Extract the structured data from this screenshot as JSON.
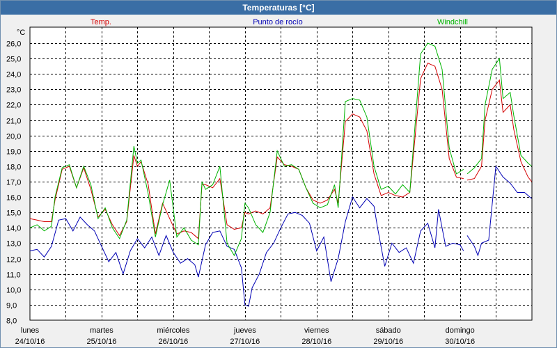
{
  "window": {
    "title": "Temperaturas [°C]"
  },
  "chart_data": {
    "type": "line",
    "title": "Temperaturas [°C]",
    "ylabel": "°C",
    "ylim": [
      8,
      26.7
    ],
    "yticks": [
      "26,0",
      "25,0",
      "24,0",
      "23,0",
      "22,0",
      "21,0",
      "20,0",
      "19,0",
      "18,0",
      "17,0",
      "16,0",
      "15,0",
      "14,0",
      "13,0",
      "12,0",
      "11,0",
      "10,0",
      "9,0",
      "8,0"
    ],
    "grid": true,
    "legend_position": "top",
    "x_day_labels": [
      {
        "day": "lunes",
        "date": "24/10/16"
      },
      {
        "day": "martes",
        "date": "25/10/16"
      },
      {
        "day": "miércoles",
        "date": "26/10/16"
      },
      {
        "day": "jueves",
        "date": "27/10/16"
      },
      {
        "day": "viernes",
        "date": "28/10/16"
      },
      {
        "day": "sábado",
        "date": "29/10/16"
      },
      {
        "day": "domingo",
        "date": "30/10/16"
      }
    ],
    "xlim": [
      0,
      7
    ],
    "series": [
      {
        "name": "Temp.",
        "color": "#d40000",
        "points": [
          [
            0,
            14.6
          ],
          [
            0.1,
            14.5
          ],
          [
            0.2,
            14.4
          ],
          [
            0.3,
            14.4
          ],
          [
            0.35,
            15.8
          ],
          [
            0.45,
            17.8
          ],
          [
            0.55,
            18
          ],
          [
            0.65,
            16.6
          ],
          [
            0.75,
            17.9
          ],
          [
            0.85,
            16.5
          ],
          [
            0.95,
            14.7
          ],
          [
            1.05,
            15.2
          ],
          [
            1.15,
            14.2
          ],
          [
            1.25,
            13.5
          ],
          [
            1.35,
            14.4
          ],
          [
            1.45,
            18.7
          ],
          [
            1.5,
            18
          ],
          [
            1.55,
            18.3
          ],
          [
            1.65,
            16.8
          ],
          [
            1.75,
            13.6
          ],
          [
            1.85,
            15.6
          ],
          [
            1.95,
            14.6
          ],
          [
            2.05,
            13.6
          ],
          [
            2.15,
            13.8
          ],
          [
            2.25,
            13.7
          ],
          [
            2.35,
            13.3
          ],
          [
            2.4,
            16.8
          ],
          [
            2.45,
            16.8
          ],
          [
            2.55,
            16.6
          ],
          [
            2.65,
            17.2
          ],
          [
            2.75,
            14.2
          ],
          [
            2.85,
            13.9
          ],
          [
            2.95,
            14.0
          ],
          [
            3.0,
            15.0
          ],
          [
            3.05,
            14.9
          ],
          [
            3.15,
            15.1
          ],
          [
            3.25,
            14.9
          ],
          [
            3.35,
            15.3
          ],
          [
            3.45,
            18.6
          ],
          [
            3.55,
            18.1
          ],
          [
            3.65,
            18.0
          ],
          [
            3.75,
            17.8
          ],
          [
            3.85,
            16.6
          ],
          [
            3.95,
            15.8
          ],
          [
            4.05,
            15.6
          ],
          [
            4.15,
            15.8
          ],
          [
            4.25,
            16.5
          ],
          [
            4.3,
            15.6
          ],
          [
            4.4,
            20.9
          ],
          [
            4.5,
            21.4
          ],
          [
            4.6,
            21.2
          ],
          [
            4.7,
            20.3
          ],
          [
            4.8,
            17.5
          ],
          [
            4.9,
            16.1
          ],
          [
            5.0,
            16.3
          ],
          [
            5.1,
            16.1
          ],
          [
            5.2,
            16.0
          ],
          [
            5.3,
            16.3
          ],
          [
            5.45,
            23.7
          ],
          [
            5.55,
            24.7
          ],
          [
            5.65,
            24.5
          ],
          [
            5.75,
            23.0
          ],
          [
            5.85,
            18.5
          ],
          [
            5.95,
            17.3
          ],
          [
            6.05,
            17.2
          ],
          [
            null,
            null
          ],
          [
            6.1,
            17.1
          ],
          [
            6.2,
            17.2
          ],
          [
            6.3,
            18.0
          ],
          [
            6.35,
            21.0
          ],
          [
            6.45,
            23.0
          ],
          [
            6.55,
            23.6
          ],
          [
            6.6,
            21.5
          ],
          [
            6.7,
            22.0
          ],
          [
            6.75,
            20.4
          ],
          [
            6.85,
            18.3
          ],
          [
            6.95,
            17.3
          ],
          [
            7.0,
            17.0
          ]
        ]
      },
      {
        "name": "Punto de rocío",
        "color": "#0000b4",
        "points": [
          [
            0,
            12.5
          ],
          [
            0.1,
            12.6
          ],
          [
            0.2,
            12.1
          ],
          [
            0.3,
            12.8
          ],
          [
            0.4,
            14.5
          ],
          [
            0.5,
            14.6
          ],
          [
            0.6,
            13.8
          ],
          [
            0.7,
            14.7
          ],
          [
            0.8,
            14.2
          ],
          [
            0.9,
            13.8
          ],
          [
            1.0,
            12.8
          ],
          [
            1.1,
            11.8
          ],
          [
            1.2,
            12.4
          ],
          [
            1.3,
            11.0
          ],
          [
            1.4,
            12.5
          ],
          [
            1.5,
            13.3
          ],
          [
            1.6,
            12.7
          ],
          [
            1.7,
            13.4
          ],
          [
            1.8,
            12.2
          ],
          [
            1.9,
            13.5
          ],
          [
            2.0,
            12.4
          ],
          [
            2.1,
            11.7
          ],
          [
            2.2,
            12.0
          ],
          [
            2.3,
            11.6
          ],
          [
            2.35,
            10.8
          ],
          [
            2.45,
            12.9
          ],
          [
            2.55,
            13.7
          ],
          [
            2.65,
            13.8
          ],
          [
            2.75,
            12.8
          ],
          [
            2.85,
            12.6
          ],
          [
            2.95,
            11.4
          ],
          [
            3.0,
            9.0
          ],
          [
            3.05,
            8.9
          ],
          [
            3.1,
            10.1
          ],
          [
            3.2,
            11.0
          ],
          [
            3.3,
            12.4
          ],
          [
            3.4,
            13.0
          ],
          [
            3.5,
            14.0
          ],
          [
            3.6,
            14.9
          ],
          [
            3.7,
            15.0
          ],
          [
            3.8,
            14.8
          ],
          [
            3.9,
            14.3
          ],
          [
            4.0,
            12.5
          ],
          [
            4.1,
            13.4
          ],
          [
            4.2,
            10.5
          ],
          [
            4.3,
            12.0
          ],
          [
            4.4,
            14.4
          ],
          [
            4.5,
            16.0
          ],
          [
            4.6,
            15.3
          ],
          [
            4.7,
            15.9
          ],
          [
            4.8,
            15.4
          ],
          [
            4.85,
            14.0
          ],
          [
            4.95,
            11.5
          ],
          [
            5.05,
            13.0
          ],
          [
            5.15,
            12.4
          ],
          [
            5.25,
            12.7
          ],
          [
            5.35,
            11.7
          ],
          [
            5.45,
            13.8
          ],
          [
            5.55,
            14.3
          ],
          [
            5.65,
            12.7
          ],
          [
            5.7,
            15.2
          ],
          [
            5.8,
            12.8
          ],
          [
            5.9,
            13.0
          ],
          [
            6.0,
            12.9
          ],
          [
            6.05,
            12.5
          ],
          [
            null,
            null
          ],
          [
            6.1,
            13.5
          ],
          [
            6.2,
            12.8
          ],
          [
            6.25,
            12.2
          ],
          [
            6.3,
            13.0
          ],
          [
            6.4,
            13.2
          ],
          [
            6.5,
            18.0
          ],
          [
            6.6,
            17.3
          ],
          [
            6.7,
            16.9
          ],
          [
            6.8,
            16.3
          ],
          [
            6.9,
            16.3
          ],
          [
            7.0,
            15.9
          ]
        ]
      },
      {
        "name": "Windchill",
        "color": "#00b400",
        "points": [
          [
            0,
            14.0
          ],
          [
            0.1,
            14.2
          ],
          [
            0.2,
            13.8
          ],
          [
            0.3,
            14.1
          ],
          [
            0.35,
            16.0
          ],
          [
            0.45,
            17.9
          ],
          [
            0.55,
            18.1
          ],
          [
            0.65,
            16.6
          ],
          [
            0.75,
            18.0
          ],
          [
            0.85,
            16.8
          ],
          [
            0.95,
            14.6
          ],
          [
            1.05,
            15.3
          ],
          [
            1.15,
            14.0
          ],
          [
            1.25,
            13.3
          ],
          [
            1.35,
            14.5
          ],
          [
            1.45,
            19.3
          ],
          [
            1.5,
            18.2
          ],
          [
            1.55,
            18.4
          ],
          [
            1.65,
            16.2
          ],
          [
            1.75,
            13.4
          ],
          [
            1.85,
            15.5
          ],
          [
            1.95,
            17.1
          ],
          [
            2.05,
            13.4
          ],
          [
            2.15,
            14.0
          ],
          [
            2.25,
            13.2
          ],
          [
            2.35,
            12.9
          ],
          [
            2.4,
            17.0
          ],
          [
            2.45,
            16.5
          ],
          [
            2.55,
            16.8
          ],
          [
            2.65,
            18.0
          ],
          [
            2.75,
            13.0
          ],
          [
            2.85,
            12.2
          ],
          [
            2.95,
            13.3
          ],
          [
            3.0,
            15.6
          ],
          [
            3.05,
            15.3
          ],
          [
            3.15,
            14.2
          ],
          [
            3.25,
            13.7
          ],
          [
            3.35,
            15.0
          ],
          [
            3.45,
            19.0
          ],
          [
            3.55,
            18.0
          ],
          [
            3.65,
            18.1
          ],
          [
            3.75,
            17.8
          ],
          [
            3.85,
            16.6
          ],
          [
            3.95,
            15.6
          ],
          [
            4.05,
            15.3
          ],
          [
            4.15,
            15.5
          ],
          [
            4.25,
            16.8
          ],
          [
            4.3,
            15.3
          ],
          [
            4.4,
            22.2
          ],
          [
            4.5,
            22.4
          ],
          [
            4.6,
            22.3
          ],
          [
            4.7,
            21.2
          ],
          [
            4.8,
            18.0
          ],
          [
            4.9,
            16.5
          ],
          [
            5.0,
            16.7
          ],
          [
            5.1,
            16.2
          ],
          [
            5.2,
            16.8
          ],
          [
            5.3,
            16.3
          ],
          [
            5.45,
            25.3
          ],
          [
            5.55,
            26.0
          ],
          [
            5.65,
            25.8
          ],
          [
            5.75,
            24.3
          ],
          [
            5.85,
            19.2
          ],
          [
            5.95,
            17.5
          ],
          [
            6.05,
            17.8
          ],
          [
            null,
            null
          ],
          [
            6.1,
            17.5
          ],
          [
            6.2,
            17.9
          ],
          [
            6.3,
            18.5
          ],
          [
            6.35,
            22.0
          ],
          [
            6.45,
            24.3
          ],
          [
            6.55,
            25.0
          ],
          [
            6.6,
            22.4
          ],
          [
            6.7,
            22.8
          ],
          [
            6.75,
            21.3
          ],
          [
            6.85,
            18.7
          ],
          [
            6.95,
            18.2
          ],
          [
            7.0,
            18.0
          ]
        ]
      }
    ]
  }
}
